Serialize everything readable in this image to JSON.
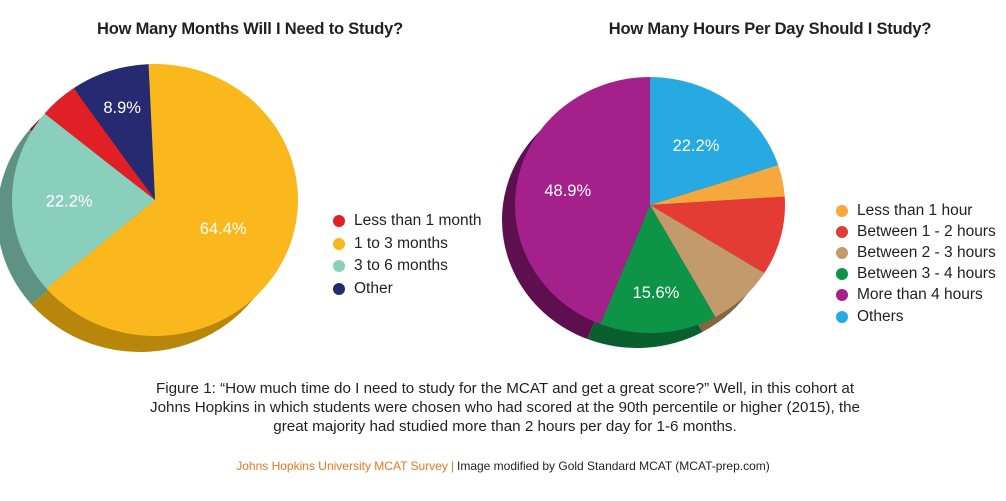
{
  "chart_data": [
    {
      "type": "pie",
      "title": "How Many Months Will I Need to Study?",
      "slices": [
        {
          "label": "1 to 3 months",
          "value": 64.4,
          "data_label": "64.4%",
          "color": "#fab81c",
          "shade": "#b8860b"
        },
        {
          "label": "3 to 6 months",
          "value": 22.2,
          "data_label": "22.2%",
          "color": "#89cfbc",
          "shade": "#5e9383"
        },
        {
          "label": "Less than 1 month",
          "value": 4.4,
          "data_label": "",
          "color": "#e01f26",
          "shade": "#8f1418"
        },
        {
          "label": "Other",
          "value": 8.9,
          "data_label": "8.9%",
          "color": "#262a71",
          "shade": "#161947"
        }
      ],
      "legend": [
        "Less than 1 month",
        "1 to 3 months",
        "3 to 6 months",
        "Other"
      ],
      "legend_colors": [
        "#e01f26",
        "#fab81c",
        "#89cfbc",
        "#262a71"
      ],
      "legend_position": "right"
    },
    {
      "type": "pie",
      "title": "How Many Hours Per Day Should I Study?",
      "slices": [
        {
          "label": "Others",
          "value": 22.2,
          "data_label": "22.2%",
          "color": "#27aae1",
          "shade": "#1a7094"
        },
        {
          "label": "Less than 1 hour",
          "value": 4.4,
          "data_label": "",
          "color": "#f6a83d",
          "shade": "#a66f22"
        },
        {
          "label": "Between 1 - 2 hours",
          "value": 11.1,
          "data_label": "",
          "color": "#e43b34",
          "shade": "#992520"
        },
        {
          "label": "Between 2 - 3 hours",
          "value": 8.9,
          "data_label": "",
          "color": "#c29a6b",
          "shade": "#836644"
        },
        {
          "label": "Between 3 - 4 hours",
          "value": 15.6,
          "data_label": "15.6%",
          "color": "#0d9447",
          "shade": "#09602e"
        },
        {
          "label": "More than 4 hours",
          "value": 48.9,
          "data_label": "48.9%",
          "color": "#a4208a",
          "shade": "#5e0f4f"
        }
      ],
      "legend": [
        "Less than 1 hour",
        "Between 1 - 2 hours",
        "Between 2 - 3 hours",
        "Between 3 - 4 hours",
        "More than 4 hours",
        "Others"
      ],
      "legend_colors": [
        "#f6a83d",
        "#e43b34",
        "#c29a6b",
        "#0d9447",
        "#a4208a",
        "#27aae1"
      ],
      "legend_position": "right"
    }
  ],
  "caption": {
    "line1": "Figure 1:  “How much time do I need to study for the MCAT and get a great score?” Well, in this cohort at",
    "line2": "Johns Hopkins in which students were chosen who had scored at the 90th percentile or higher (2015), the",
    "line3": "great majority had studied more than 2 hours per day for 1-6 months."
  },
  "footer": {
    "source": "Johns Hopkins University MCAT Survey",
    "separator": "|",
    "credit": "Image modified by Gold Standard MCAT (MCAT-prep.com)"
  }
}
